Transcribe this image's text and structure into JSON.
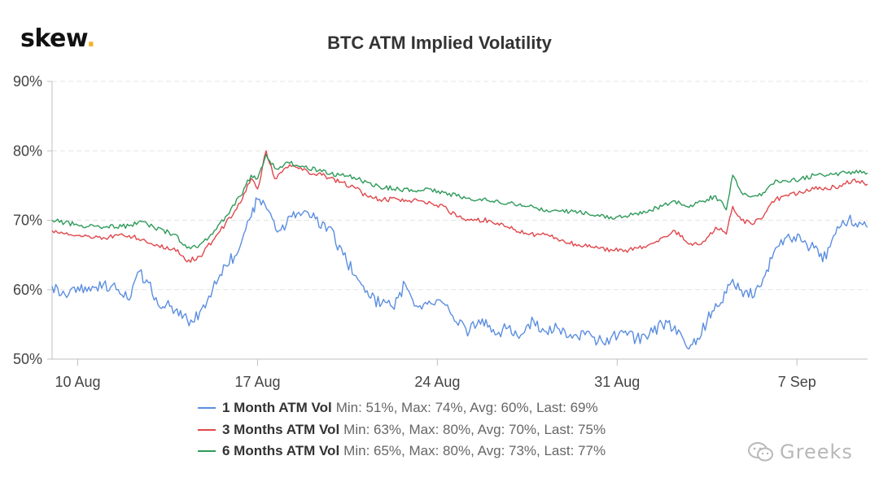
{
  "brand": {
    "logo_text": "skew",
    "logo_dot": ".",
    "dot_color": "#f0b429"
  },
  "watermark": {
    "text": "Greeks",
    "icon": "wechat-icon"
  },
  "chart_data": {
    "type": "line",
    "title": "BTC ATM Implied Volatility",
    "xlabel": "",
    "ylabel": "",
    "ylim": [
      50,
      90
    ],
    "yticks": [
      50,
      60,
      70,
      80,
      90
    ],
    "ytick_labels": [
      "50%",
      "60%",
      "70%",
      "80%",
      "90%"
    ],
    "xlim": [
      "2020-08-09T00:00",
      "2020-09-09T18:00"
    ],
    "xticks": [
      "2020-08-10",
      "2020-08-17",
      "2020-08-24",
      "2020-08-31",
      "2020-09-07"
    ],
    "xtick_labels": [
      "10 Aug",
      "17 Aug",
      "24 Aug",
      "31 Aug",
      "7 Sep"
    ],
    "grid": true,
    "legend_position": "bottom",
    "series": [
      {
        "name": "1 Month ATM Vol",
        "color": "#5b8ee0",
        "stats": "Min: 51%, Max: 74%, Avg: 60%, Last: 69%",
        "points": [
          [
            "2020-08-09T00:00",
            60.5
          ],
          [
            "2020-08-09T12:00",
            59.3
          ],
          [
            "2020-08-10T00:00",
            60.4
          ],
          [
            "2020-08-10T12:00",
            59.8
          ],
          [
            "2020-08-11T00:00",
            60.8
          ],
          [
            "2020-08-11T12:00",
            60.0
          ],
          [
            "2020-08-12T00:00",
            58.5
          ],
          [
            "2020-08-12T08:00",
            62.5
          ],
          [
            "2020-08-12T18:00",
            61.0
          ],
          [
            "2020-08-13T03:00",
            57.8
          ],
          [
            "2020-08-13T14:00",
            57.6
          ],
          [
            "2020-08-14T00:00",
            57.0
          ],
          [
            "2020-08-14T08:00",
            54.8
          ],
          [
            "2020-08-14T18:00",
            56.8
          ],
          [
            "2020-08-15T06:00",
            60.0
          ],
          [
            "2020-08-15T18:00",
            63.5
          ],
          [
            "2020-08-16T06:00",
            65.5
          ],
          [
            "2020-08-16T18:00",
            70.5
          ],
          [
            "2020-08-17T00:00",
            73.0
          ],
          [
            "2020-08-17T12:00",
            71.0
          ],
          [
            "2020-08-17T20:00",
            68.5
          ],
          [
            "2020-08-18T08:00",
            70.5
          ],
          [
            "2020-08-18T18:00",
            71.0
          ],
          [
            "2020-08-19T06:00",
            70.2
          ],
          [
            "2020-08-19T18:00",
            69.0
          ],
          [
            "2020-08-20T08:00",
            65.0
          ],
          [
            "2020-08-20T20:00",
            62.0
          ],
          [
            "2020-08-21T08:00",
            59.0
          ],
          [
            "2020-08-21T20:00",
            58.0
          ],
          [
            "2020-08-22T06:00",
            57.5
          ],
          [
            "2020-08-22T18:00",
            60.8
          ],
          [
            "2020-08-23T06:00",
            57.5
          ],
          [
            "2020-08-23T18:00",
            58.0
          ],
          [
            "2020-08-24T06:00",
            58.0
          ],
          [
            "2020-08-24T16:00",
            55.5
          ],
          [
            "2020-08-25T06:00",
            54.0
          ],
          [
            "2020-08-25T18:00",
            55.8
          ],
          [
            "2020-08-26T06:00",
            53.5
          ],
          [
            "2020-08-26T18:00",
            54.5
          ],
          [
            "2020-08-27T06:00",
            53.5
          ],
          [
            "2020-08-27T18:00",
            55.5
          ],
          [
            "2020-08-28T04:00",
            54.0
          ],
          [
            "2020-08-28T16:00",
            54.5
          ],
          [
            "2020-08-29T06:00",
            53.0
          ],
          [
            "2020-08-29T18:00",
            53.5
          ],
          [
            "2020-08-30T06:00",
            52.5
          ],
          [
            "2020-08-30T18:00",
            53.0
          ],
          [
            "2020-08-31T06:00",
            53.8
          ],
          [
            "2020-08-31T18:00",
            53.0
          ],
          [
            "2020-09-01T06:00",
            53.5
          ],
          [
            "2020-09-01T18:00",
            55.0
          ],
          [
            "2020-09-02T06:00",
            54.8
          ],
          [
            "2020-09-02T16:00",
            52.0
          ],
          [
            "2020-09-03T03:00",
            53.0
          ],
          [
            "2020-09-03T12:00",
            55.5
          ],
          [
            "2020-09-03T20:00",
            58.0
          ],
          [
            "2020-09-04T06:00",
            59.5
          ],
          [
            "2020-09-04T12:00",
            61.5
          ],
          [
            "2020-09-04T20:00",
            60.0
          ],
          [
            "2020-09-05T08:00",
            59.0
          ],
          [
            "2020-09-05T18:00",
            62.0
          ],
          [
            "2020-09-06T04:00",
            66.0
          ],
          [
            "2020-09-06T16:00",
            68.0
          ],
          [
            "2020-09-07T04:00",
            67.0
          ],
          [
            "2020-09-07T16:00",
            66.0
          ],
          [
            "2020-09-08T00:00",
            64.0
          ],
          [
            "2020-09-08T12:00",
            68.0
          ],
          [
            "2020-09-09T00:00",
            70.0
          ],
          [
            "2020-09-09T12:00",
            69.5
          ],
          [
            "2020-09-09T18:00",
            69.0
          ]
        ]
      },
      {
        "name": "3 Months ATM Vol",
        "color": "#e0474c",
        "stats": "Min: 63%, Max: 80%, Avg: 70%, Last: 75%",
        "points": [
          [
            "2020-08-09T00:00",
            68.5
          ],
          [
            "2020-08-10T00:00",
            67.8
          ],
          [
            "2020-08-11T00:00",
            67.5
          ],
          [
            "2020-08-12T00:00",
            67.8
          ],
          [
            "2020-08-12T12:00",
            67.2
          ],
          [
            "2020-08-13T00:00",
            66.3
          ],
          [
            "2020-08-13T18:00",
            66.0
          ],
          [
            "2020-08-14T06:00",
            64.0
          ],
          [
            "2020-08-14T18:00",
            64.8
          ],
          [
            "2020-08-15T06:00",
            67.0
          ],
          [
            "2020-08-15T18:00",
            69.5
          ],
          [
            "2020-08-16T08:00",
            72.5
          ],
          [
            "2020-08-16T18:00",
            76.0
          ],
          [
            "2020-08-17T00:00",
            74.5
          ],
          [
            "2020-08-17T08:00",
            80.0
          ],
          [
            "2020-08-17T16:00",
            76.0
          ],
          [
            "2020-08-18T06:00",
            78.0
          ],
          [
            "2020-08-18T18:00",
            77.2
          ],
          [
            "2020-08-19T12:00",
            76.5
          ],
          [
            "2020-08-20T06:00",
            75.5
          ],
          [
            "2020-08-20T18:00",
            74.8
          ],
          [
            "2020-08-21T06:00",
            73.5
          ],
          [
            "2020-08-21T18:00",
            73.0
          ],
          [
            "2020-08-22T12:00",
            73.0
          ],
          [
            "2020-08-23T06:00",
            72.8
          ],
          [
            "2020-08-23T18:00",
            72.5
          ],
          [
            "2020-08-24T06:00",
            72.0
          ],
          [
            "2020-08-24T18:00",
            70.5
          ],
          [
            "2020-08-25T06:00",
            70.0
          ],
          [
            "2020-08-26T00:00",
            70.0
          ],
          [
            "2020-08-26T18:00",
            69.0
          ],
          [
            "2020-08-27T12:00",
            68.0
          ],
          [
            "2020-08-28T06:00",
            68.0
          ],
          [
            "2020-08-28T18:00",
            67.0
          ],
          [
            "2020-08-29T12:00",
            66.5
          ],
          [
            "2020-08-30T06:00",
            66.0
          ],
          [
            "2020-08-30T18:00",
            65.8
          ],
          [
            "2020-08-31T06:00",
            65.5
          ],
          [
            "2020-08-31T18:00",
            66.0
          ],
          [
            "2020-09-01T06:00",
            66.5
          ],
          [
            "2020-09-01T18:00",
            67.5
          ],
          [
            "2020-09-02T06:00",
            68.5
          ],
          [
            "2020-09-02T16:00",
            67.0
          ],
          [
            "2020-09-03T03:00",
            66.5
          ],
          [
            "2020-09-03T12:00",
            67.5
          ],
          [
            "2020-09-03T20:00",
            69.0
          ],
          [
            "2020-09-04T06:00",
            68.0
          ],
          [
            "2020-09-04T12:00",
            72.0
          ],
          [
            "2020-09-04T20:00",
            70.0
          ],
          [
            "2020-09-05T08:00",
            69.5
          ],
          [
            "2020-09-05T18:00",
            71.0
          ],
          [
            "2020-09-06T04:00",
            73.0
          ],
          [
            "2020-09-06T16:00",
            73.5
          ],
          [
            "2020-09-07T04:00",
            74.0
          ],
          [
            "2020-09-07T16:00",
            74.5
          ],
          [
            "2020-09-08T04:00",
            74.5
          ],
          [
            "2020-09-08T16:00",
            75.0
          ],
          [
            "2020-09-09T04:00",
            75.8
          ],
          [
            "2020-09-09T18:00",
            75.2
          ]
        ]
      },
      {
        "name": "6 Months ATM Vol",
        "color": "#2f9a5a",
        "stats": "Min: 65%, Max: 80%, Avg: 73%, Last: 77%",
        "points": [
          [
            "2020-08-09T00:00",
            70.0
          ],
          [
            "2020-08-10T00:00",
            69.3
          ],
          [
            "2020-08-11T00:00",
            69.0
          ],
          [
            "2020-08-12T00:00",
            69.2
          ],
          [
            "2020-08-12T12:00",
            69.8
          ],
          [
            "2020-08-13T00:00",
            68.8
          ],
          [
            "2020-08-13T18:00",
            68.0
          ],
          [
            "2020-08-14T06:00",
            66.0
          ],
          [
            "2020-08-14T18:00",
            66.5
          ],
          [
            "2020-08-15T06:00",
            68.0
          ],
          [
            "2020-08-15T18:00",
            70.5
          ],
          [
            "2020-08-16T08:00",
            73.5
          ],
          [
            "2020-08-16T18:00",
            76.5
          ],
          [
            "2020-08-17T00:00",
            76.0
          ],
          [
            "2020-08-17T08:00",
            79.5
          ],
          [
            "2020-08-17T16:00",
            77.5
          ],
          [
            "2020-08-18T06:00",
            78.2
          ],
          [
            "2020-08-18T18:00",
            77.8
          ],
          [
            "2020-08-19T12:00",
            77.0
          ],
          [
            "2020-08-20T06:00",
            76.5
          ],
          [
            "2020-08-20T18:00",
            76.2
          ],
          [
            "2020-08-21T06:00",
            75.5
          ],
          [
            "2020-08-21T18:00",
            74.8
          ],
          [
            "2020-08-22T12:00",
            74.5
          ],
          [
            "2020-08-23T06:00",
            74.3
          ],
          [
            "2020-08-23T18:00",
            74.5
          ],
          [
            "2020-08-24T06:00",
            74.0
          ],
          [
            "2020-08-24T18:00",
            73.5
          ],
          [
            "2020-08-25T06:00",
            73.2
          ],
          [
            "2020-08-26T00:00",
            72.8
          ],
          [
            "2020-08-26T18:00",
            72.5
          ],
          [
            "2020-08-27T12:00",
            72.0
          ],
          [
            "2020-08-28T06:00",
            71.5
          ],
          [
            "2020-08-28T18:00",
            71.3
          ],
          [
            "2020-08-29T12:00",
            71.2
          ],
          [
            "2020-08-30T06:00",
            70.8
          ],
          [
            "2020-08-30T18:00",
            70.5
          ],
          [
            "2020-08-31T06:00",
            70.5
          ],
          [
            "2020-08-31T18:00",
            71.0
          ],
          [
            "2020-09-01T06:00",
            71.5
          ],
          [
            "2020-09-01T18:00",
            72.0
          ],
          [
            "2020-09-02T06:00",
            72.8
          ],
          [
            "2020-09-02T16:00",
            72.0
          ],
          [
            "2020-09-03T03:00",
            72.5
          ],
          [
            "2020-09-03T12:00",
            73.0
          ],
          [
            "2020-09-03T20:00",
            73.5
          ],
          [
            "2020-09-04T06:00",
            71.5
          ],
          [
            "2020-09-04T12:00",
            76.5
          ],
          [
            "2020-09-04T20:00",
            74.0
          ],
          [
            "2020-09-05T08:00",
            73.5
          ],
          [
            "2020-09-05T18:00",
            74.0
          ],
          [
            "2020-09-06T04:00",
            75.8
          ],
          [
            "2020-09-06T16:00",
            75.5
          ],
          [
            "2020-09-07T04:00",
            76.0
          ],
          [
            "2020-09-07T16:00",
            76.5
          ],
          [
            "2020-09-08T04:00",
            76.5
          ],
          [
            "2020-09-08T16:00",
            76.8
          ],
          [
            "2020-09-09T04:00",
            77.0
          ],
          [
            "2020-09-09T18:00",
            76.8
          ]
        ]
      }
    ]
  }
}
